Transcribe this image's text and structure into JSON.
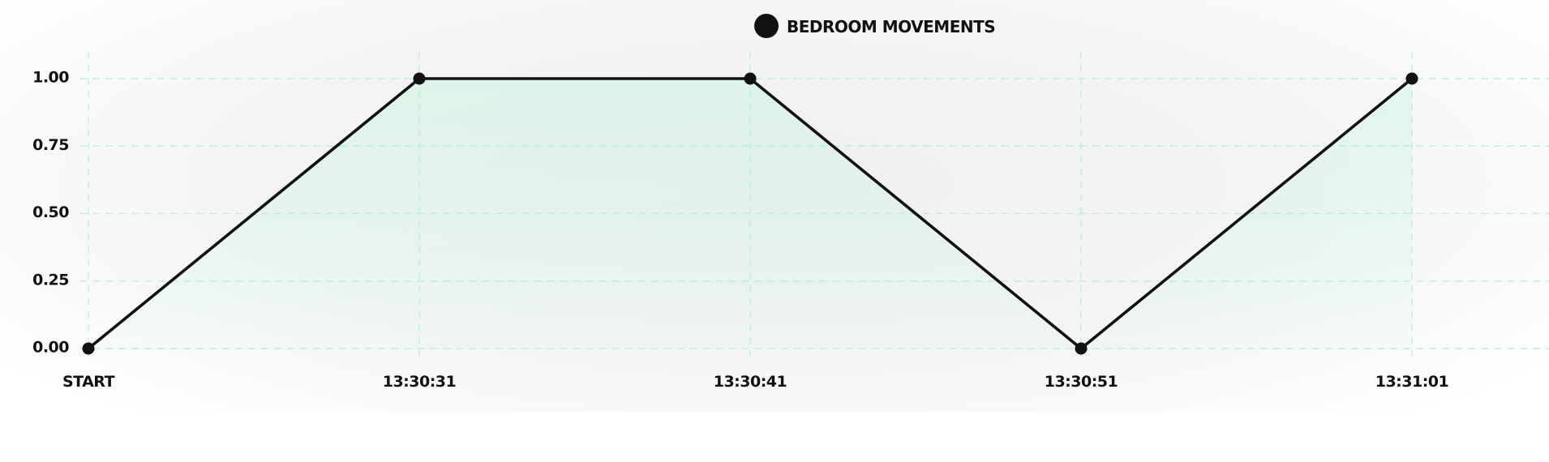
{
  "chart_data": {
    "type": "line",
    "title": "",
    "xlabel": "",
    "ylabel": "",
    "categories": [
      "START",
      "13:30:31",
      "13:30:41",
      "13:30:51",
      "13:31:01"
    ],
    "series": [
      {
        "name": "BEDROOM MOVEMENTS",
        "values": [
          0,
          1,
          1,
          0,
          1
        ]
      }
    ],
    "ylim": [
      0,
      1
    ],
    "yticks": [
      "0.00",
      "0.25",
      "0.50",
      "0.75",
      "1.00"
    ],
    "grid": true,
    "legend_position": "top-center",
    "colors": {
      "line": "#111111",
      "fill": "#a8f5d2",
      "grid": "#bfeedd",
      "text": "#111111"
    }
  }
}
